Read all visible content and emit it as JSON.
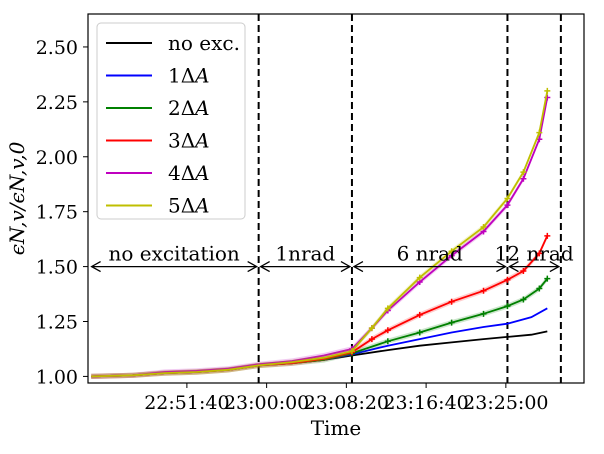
{
  "chart_data": {
    "type": "line",
    "title": "",
    "xlabel": "Time",
    "ylabel": "ϵN,v/ϵN,v,0",
    "x_unit": "seconds from 22:46:00",
    "x_start_clock": "22:46:00",
    "xlim_seconds": [
      -280,
      2830
    ],
    "ylim": [
      0.97,
      2.65
    ],
    "x_ticks": [
      {
        "label": "22:51:40",
        "seconds": 340
      },
      {
        "label": "23:00:00",
        "seconds": 840
      },
      {
        "label": "23:08:20",
        "seconds": 1340
      },
      {
        "label": "23:16:40",
        "seconds": 1840
      },
      {
        "label": "23:25:00",
        "seconds": 2340
      }
    ],
    "y_ticks": [
      1.0,
      1.25,
      1.5,
      1.75,
      2.0,
      2.25,
      2.5
    ],
    "y_tick_labels": [
      "1.00",
      "1.25",
      "1.50",
      "1.75",
      "2.00",
      "2.25",
      "2.50"
    ],
    "grid": false,
    "legend_placement": "top-left",
    "vlines_seconds": [
      790,
      1375,
      2350,
      2685
    ],
    "annotations": [
      {
        "text": "no excitation",
        "x_from": -270,
        "x_to": 790,
        "y": 1.5
      },
      {
        "text": "1nrad",
        "x_from": 790,
        "x_to": 1375,
        "y": 1.5
      },
      {
        "text": "6 nrad",
        "x_from": 1375,
        "x_to": 2350,
        "y": 1.5
      },
      {
        "text": "12 nrad",
        "x_from": 2350,
        "x_to": 2685,
        "y": 1.5
      }
    ],
    "series": [
      {
        "name": "no exc.",
        "legend_main": "no exc.",
        "legend_italic": "",
        "color": "#000000",
        "markers": false,
        "x": [
          -260,
          0,
          200,
          400,
          600,
          790,
          1000,
          1200,
          1375,
          1600,
          1800,
          2000,
          2200,
          2350,
          2500,
          2600
        ],
        "y": [
          1.0,
          1.005,
          1.015,
          1.02,
          1.03,
          1.05,
          1.06,
          1.075,
          1.095,
          1.12,
          1.14,
          1.155,
          1.17,
          1.18,
          1.19,
          1.205
        ]
      },
      {
        "name": "1ΔA",
        "legend_main": "1Δ",
        "legend_italic": "A",
        "color": "#0000ff",
        "markers": false,
        "x": [
          -260,
          0,
          200,
          400,
          600,
          790,
          1000,
          1200,
          1375,
          1600,
          1800,
          2000,
          2200,
          2350,
          2500,
          2600
        ],
        "y": [
          1.0,
          1.005,
          1.015,
          1.02,
          1.03,
          1.05,
          1.06,
          1.075,
          1.1,
          1.14,
          1.17,
          1.2,
          1.225,
          1.24,
          1.27,
          1.31
        ]
      },
      {
        "name": "2ΔA",
        "legend_main": "2Δ",
        "legend_italic": "A",
        "color": "#008000",
        "markers": true,
        "x": [
          -260,
          0,
          200,
          400,
          600,
          790,
          1000,
          1200,
          1375,
          1600,
          1800,
          2000,
          2200,
          2350,
          2450,
          2550,
          2600
        ],
        "y": [
          1.0,
          1.005,
          1.015,
          1.02,
          1.03,
          1.05,
          1.06,
          1.075,
          1.105,
          1.16,
          1.2,
          1.245,
          1.285,
          1.32,
          1.35,
          1.4,
          1.445
        ]
      },
      {
        "name": "3ΔA",
        "legend_main": "3Δ",
        "legend_italic": "A",
        "color": "#ff0000",
        "markers": true,
        "x": [
          -260,
          0,
          200,
          400,
          600,
          790,
          1000,
          1200,
          1375,
          1500,
          1600,
          1800,
          2000,
          2200,
          2350,
          2450,
          2550,
          2600
        ],
        "y": [
          1.0,
          1.005,
          1.015,
          1.02,
          1.03,
          1.05,
          1.06,
          1.08,
          1.11,
          1.17,
          1.21,
          1.28,
          1.34,
          1.39,
          1.44,
          1.48,
          1.56,
          1.64
        ]
      },
      {
        "name": "4ΔA",
        "legend_main": "4Δ",
        "legend_italic": "A",
        "color": "#bf00bf",
        "markers": true,
        "x": [
          -260,
          0,
          200,
          400,
          600,
          790,
          1000,
          1200,
          1375,
          1500,
          1600,
          1800,
          2000,
          2200,
          2350,
          2450,
          2550,
          2600
        ],
        "y": [
          1.0,
          1.005,
          1.02,
          1.025,
          1.035,
          1.055,
          1.07,
          1.095,
          1.125,
          1.22,
          1.3,
          1.43,
          1.55,
          1.66,
          1.78,
          1.9,
          2.08,
          2.27
        ]
      },
      {
        "name": "5ΔA",
        "legend_main": "5Δ",
        "legend_italic": "A",
        "color": "#bfbf00",
        "markers": true,
        "x": [
          -260,
          0,
          200,
          400,
          600,
          790,
          1000,
          1200,
          1375,
          1500,
          1600,
          1800,
          2000,
          2200,
          2350,
          2450,
          2550,
          2600
        ],
        "y": [
          1.0,
          1.005,
          1.015,
          1.02,
          1.03,
          1.05,
          1.065,
          1.085,
          1.115,
          1.22,
          1.31,
          1.45,
          1.57,
          1.68,
          1.81,
          1.93,
          2.11,
          2.3
        ]
      }
    ]
  }
}
